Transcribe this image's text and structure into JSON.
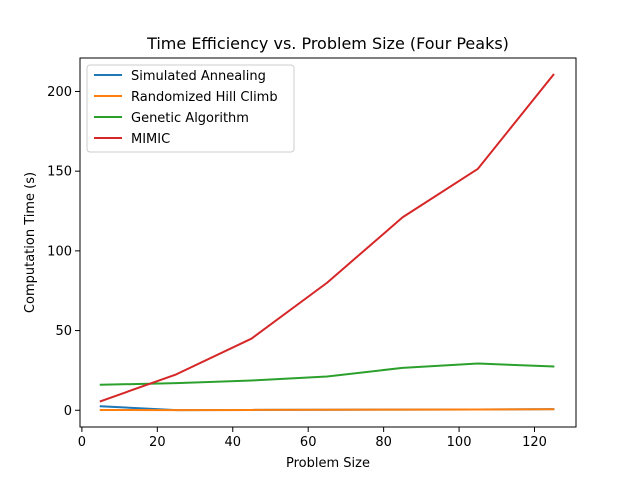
{
  "chart_data": {
    "type": "line",
    "title": "Time Efficiency vs. Problem Size (Four Peaks)",
    "xlabel": "Problem Size",
    "ylabel": "Computation Time (s)",
    "xlim": [
      -0.5,
      131
    ],
    "ylim": [
      -10.5,
      221
    ],
    "xticks": [
      0,
      20,
      40,
      60,
      80,
      100,
      120
    ],
    "yticks": [
      0,
      50,
      100,
      150,
      200
    ],
    "grid": false,
    "legend_position": "top-left",
    "x": [
      5,
      25,
      45,
      65,
      85,
      105,
      125
    ],
    "series": [
      {
        "name": "Simulated Annealing",
        "color": "#1f77b4",
        "values": [
          2.5,
          0.1,
          0.2,
          0.3,
          0.4,
          0.5,
          0.7
        ]
      },
      {
        "name": "Randomized Hill Climb",
        "color": "#ff7f0e",
        "values": [
          0.2,
          0.1,
          0.2,
          0.3,
          0.4,
          0.5,
          0.6
        ]
      },
      {
        "name": "Genetic Algorithm",
        "color": "#2ca02c",
        "values": [
          16.0,
          17.0,
          18.7,
          21.2,
          26.6,
          29.3,
          27.5
        ]
      },
      {
        "name": "MIMIC",
        "color": "#d62728",
        "values": [
          5.7,
          22.5,
          45.0,
          80.0,
          121.0,
          151.5,
          210.5
        ]
      }
    ]
  }
}
